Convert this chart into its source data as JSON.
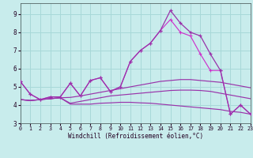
{
  "x": [
    0,
    1,
    2,
    3,
    4,
    5,
    6,
    7,
    8,
    9,
    10,
    11,
    12,
    13,
    14,
    15,
    16,
    17,
    18,
    19,
    20,
    21,
    22,
    23
  ],
  "line_main": [
    5.3,
    4.6,
    4.3,
    4.45,
    4.45,
    5.2,
    4.5,
    5.35,
    5.5,
    4.75,
    5.0,
    6.4,
    7.0,
    7.4,
    8.1,
    9.2,
    8.5,
    8.0,
    7.8,
    6.8,
    5.9,
    3.5,
    4.0,
    3.5
  ],
  "line_drop": [
    5.3,
    4.6,
    4.3,
    4.45,
    4.45,
    5.2,
    4.5,
    5.35,
    5.5,
    4.75,
    5.0,
    6.4,
    7.0,
    7.4,
    8.1,
    8.7,
    8.0,
    7.8,
    6.8,
    5.9,
    5.9,
    3.5,
    4.0,
    3.5
  ],
  "line_top": [
    4.3,
    4.25,
    4.3,
    4.35,
    4.4,
    4.42,
    4.5,
    4.6,
    4.7,
    4.8,
    4.9,
    5.0,
    5.1,
    5.2,
    5.3,
    5.35,
    5.4,
    5.4,
    5.35,
    5.3,
    5.25,
    5.15,
    5.05,
    4.95
  ],
  "line_mid": [
    4.3,
    4.25,
    4.3,
    4.35,
    4.4,
    4.1,
    4.2,
    4.3,
    4.4,
    4.5,
    4.55,
    4.6,
    4.65,
    4.7,
    4.75,
    4.8,
    4.82,
    4.82,
    4.8,
    4.75,
    4.65,
    4.55,
    4.45,
    4.35
  ],
  "line_low": [
    4.3,
    4.25,
    4.3,
    4.35,
    4.4,
    4.05,
    4.05,
    4.05,
    4.1,
    4.12,
    4.15,
    4.15,
    4.12,
    4.1,
    4.05,
    4.0,
    3.95,
    3.9,
    3.85,
    3.8,
    3.75,
    3.65,
    3.6,
    3.5
  ],
  "purple_dark": "#9933aa",
  "purple_light": "#cc33cc",
  "bg_color": "#c8ecec",
  "grid_color": "#a8d8d8",
  "xlabel": "Windchill (Refroidissement éolien,°C)",
  "ylim": [
    3.0,
    9.6
  ],
  "xlim": [
    0,
    23
  ],
  "yticks": [
    3,
    4,
    5,
    6,
    7,
    8,
    9
  ],
  "xticks": [
    0,
    1,
    2,
    3,
    4,
    5,
    6,
    7,
    8,
    9,
    10,
    11,
    12,
    13,
    14,
    15,
    16,
    17,
    18,
    19,
    20,
    21,
    22,
    23
  ]
}
